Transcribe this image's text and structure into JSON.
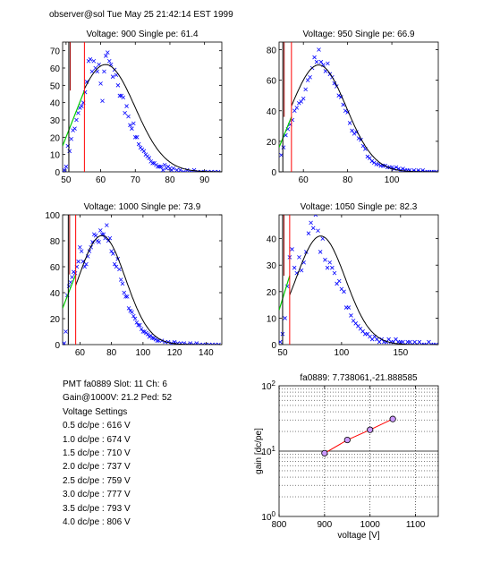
{
  "header": "observer@sol  Tue May 25 21:42:14 EST 1999",
  "colors": {
    "data_marker": "#0000ff",
    "fit_curve": "#000000",
    "low_fit": "#00cc00",
    "cut_line": "#ff0000",
    "gain_line": "#ff0000",
    "gain_point_fill": "#cc99ff"
  },
  "info": {
    "pmt_line": "PMT fa0889 Slot: 11 Ch: 6",
    "gain_line": "Gain@1000V: 21.2 Ped: 52",
    "settings_title": "Voltage Settings",
    "settings": [
      "0.5 dc/pe : 616 V",
      "1.0 dc/pe : 674 V",
      "1.5 dc/pe : 710 V",
      "2.0 dc/pe : 737 V",
      "2.5 dc/pe : 759 V",
      "3.0 dc/pe : 777 V",
      "3.5 dc/pe : 793 V",
      "4.0 dc/pe : 806 V"
    ]
  },
  "chart_data": [
    {
      "type": "scatter",
      "title": "Voltage: 900 Single pe: 61.4",
      "xlim": [
        49,
        95
      ],
      "ylim": [
        0,
        75
      ],
      "xticks": [
        50,
        60,
        70,
        80,
        90
      ],
      "yticks": [
        0,
        10,
        20,
        30,
        40,
        50,
        60,
        70
      ],
      "fit": {
        "amp": 62,
        "mean": 61.4,
        "sigma": 8.5
      },
      "low_fit": {
        "x": [
          49,
          55.3
        ],
        "y": [
          15,
          47
        ]
      },
      "cut_lines": [
        50.8,
        55.3
      ],
      "points": [
        [
          49.5,
          1
        ],
        [
          50,
          3
        ],
        [
          50.5,
          15
        ],
        [
          51,
          12
        ],
        [
          51.5,
          19
        ],
        [
          52,
          24
        ],
        [
          52.5,
          25
        ],
        [
          53,
          30
        ],
        [
          53.5,
          34
        ],
        [
          54,
          37
        ],
        [
          54.5,
          38
        ],
        [
          55,
          40
        ],
        [
          55.5,
          46
        ],
        [
          56,
          52
        ],
        [
          56.5,
          64
        ],
        [
          57,
          65
        ],
        [
          57.5,
          58
        ],
        [
          58,
          64
        ],
        [
          58.5,
          60
        ],
        [
          59,
          58
        ],
        [
          59.5,
          62
        ],
        [
          60,
          51
        ],
        [
          60.5,
          41
        ],
        [
          61,
          58
        ],
        [
          61.5,
          67
        ],
        [
          62,
          69
        ],
        [
          62.5,
          64
        ],
        [
          63,
          62
        ],
        [
          63.5,
          55
        ],
        [
          64,
          59
        ],
        [
          64.5,
          56
        ],
        [
          65,
          50
        ],
        [
          65.5,
          44
        ],
        [
          66,
          44
        ],
        [
          66.5,
          43
        ],
        [
          67,
          34
        ],
        [
          67.5,
          38
        ],
        [
          68,
          32
        ],
        [
          68.5,
          27
        ],
        [
          69,
          25
        ],
        [
          69.5,
          28
        ],
        [
          70,
          20
        ],
        [
          70.5,
          20
        ],
        [
          71,
          16
        ],
        [
          71.5,
          14
        ],
        [
          72,
          13
        ],
        [
          72.5,
          12
        ],
        [
          73,
          10
        ],
        [
          73.5,
          9
        ],
        [
          74,
          8
        ],
        [
          74.5,
          6
        ],
        [
          75,
          5
        ],
        [
          75.5,
          5
        ],
        [
          76,
          4
        ],
        [
          76.5,
          3
        ],
        [
          77,
          3
        ],
        [
          77.5,
          3
        ],
        [
          78,
          1
        ],
        [
          78.5,
          4
        ],
        [
          79,
          2
        ],
        [
          79.5,
          3
        ],
        [
          80,
          2
        ],
        [
          80.5,
          1
        ],
        [
          81,
          2
        ],
        [
          82,
          1
        ],
        [
          83,
          1
        ],
        [
          84,
          0
        ],
        [
          85,
          1
        ],
        [
          86,
          0
        ],
        [
          87,
          1
        ],
        [
          88,
          0
        ],
        [
          89,
          0
        ],
        [
          90,
          0
        ],
        [
          91,
          0
        ],
        [
          92,
          0
        ],
        [
          93,
          0
        ],
        [
          94,
          0
        ]
      ]
    },
    {
      "type": "scatter",
      "title": "Voltage: 950 Single pe: 66.9",
      "xlim": [
        49,
        121
      ],
      "ylim": [
        0,
        85
      ],
      "xticks": [
        60,
        80,
        100
      ],
      "yticks": [
        0,
        20,
        40,
        60,
        80
      ],
      "fit": {
        "amp": 70,
        "mean": 66.9,
        "sigma": 12.5
      },
      "low_fit": {
        "x": [
          49,
          54.6
        ],
        "y": [
          16,
          36
        ]
      },
      "cut_lines": [
        50.7,
        54.6
      ],
      "points": [
        [
          50,
          11
        ],
        [
          51,
          16
        ],
        [
          52,
          24
        ],
        [
          53,
          28
        ],
        [
          54,
          31
        ],
        [
          55,
          34
        ],
        [
          56,
          40
        ],
        [
          57,
          42
        ],
        [
          58,
          45
        ],
        [
          59,
          46
        ],
        [
          60,
          48
        ],
        [
          61,
          54
        ],
        [
          62,
          60
        ],
        [
          63,
          62
        ],
        [
          64,
          68
        ],
        [
          65,
          75
        ],
        [
          66,
          72
        ],
        [
          67,
          80
        ],
        [
          68,
          72
        ],
        [
          69,
          70
        ],
        [
          70,
          66
        ],
        [
          71,
          71
        ],
        [
          72,
          64
        ],
        [
          73,
          62
        ],
        [
          74,
          58
        ],
        [
          75,
          56
        ],
        [
          76,
          50
        ],
        [
          77,
          49
        ],
        [
          78,
          44
        ],
        [
          79,
          40
        ],
        [
          80,
          39
        ],
        [
          81,
          32
        ],
        [
          82,
          27
        ],
        [
          83,
          25
        ],
        [
          84,
          26
        ],
        [
          85,
          22
        ],
        [
          86,
          21
        ],
        [
          87,
          17
        ],
        [
          88,
          15
        ],
        [
          89,
          10
        ],
        [
          90,
          9
        ],
        [
          91,
          7
        ],
        [
          92,
          6
        ],
        [
          93,
          5
        ],
        [
          94,
          5
        ],
        [
          95,
          4
        ],
        [
          96,
          4
        ],
        [
          97,
          4
        ],
        [
          98,
          3
        ],
        [
          99,
          3
        ],
        [
          100,
          3
        ],
        [
          101,
          2
        ],
        [
          102,
          3
        ],
        [
          103,
          2
        ],
        [
          104,
          1
        ],
        [
          105,
          2
        ],
        [
          106,
          1
        ],
        [
          107,
          1
        ],
        [
          108,
          1
        ],
        [
          109,
          0
        ],
        [
          110,
          1
        ],
        [
          111,
          0
        ],
        [
          112,
          1
        ],
        [
          113,
          0
        ],
        [
          114,
          1
        ],
        [
          115,
          0
        ],
        [
          116,
          0
        ],
        [
          117,
          0
        ],
        [
          118,
          0
        ],
        [
          119,
          0
        ],
        [
          120,
          0
        ]
      ]
    },
    {
      "type": "scatter",
      "title": "Voltage: 1000 Single pe: 73.9",
      "xlim": [
        49,
        150
      ],
      "ylim": [
        0,
        100
      ],
      "xticks": [
        60,
        80,
        100,
        120,
        140
      ],
      "yticks": [
        0,
        20,
        40,
        60,
        80,
        100
      ],
      "fit": {
        "amp": 84,
        "mean": 73.9,
        "sigma": 15
      },
      "low_fit": {
        "x": [
          49,
          57.3
        ],
        "y": [
          28,
          54
        ]
      },
      "cut_lines": [
        52.6,
        57.3
      ],
      "points": [
        [
          50,
          1
        ],
        [
          51,
          10
        ],
        [
          52,
          38
        ],
        [
          53,
          45
        ],
        [
          54,
          48
        ],
        [
          55,
          52
        ],
        [
          56,
          56
        ],
        [
          57,
          55
        ],
        [
          58,
          60
        ],
        [
          59,
          64
        ],
        [
          60,
          75
        ],
        [
          61,
          72
        ],
        [
          62,
          64
        ],
        [
          63,
          60
        ],
        [
          64,
          62
        ],
        [
          65,
          68
        ],
        [
          66,
          72
        ],
        [
          67,
          75
        ],
        [
          68,
          79
        ],
        [
          69,
          85
        ],
        [
          70,
          84
        ],
        [
          71,
          80
        ],
        [
          72,
          79
        ],
        [
          73,
          88
        ],
        [
          74,
          85
        ],
        [
          75,
          85
        ],
        [
          76,
          82
        ],
        [
          77,
          92
        ],
        [
          78,
          80
        ],
        [
          79,
          82
        ],
        [
          80,
          72
        ],
        [
          81,
          70
        ],
        [
          82,
          62
        ],
        [
          83,
          60
        ],
        [
          84,
          66
        ],
        [
          85,
          58
        ],
        [
          86,
          50
        ],
        [
          87,
          47
        ],
        [
          88,
          40
        ],
        [
          89,
          37
        ],
        [
          90,
          37
        ],
        [
          91,
          28
        ],
        [
          92,
          26
        ],
        [
          93,
          25
        ],
        [
          94,
          22
        ],
        [
          95,
          20
        ],
        [
          96,
          17
        ],
        [
          97,
          15
        ],
        [
          98,
          15
        ],
        [
          99,
          12
        ],
        [
          100,
          10
        ],
        [
          101,
          10
        ],
        [
          102,
          9
        ],
        [
          103,
          8
        ],
        [
          104,
          6
        ],
        [
          105,
          7
        ],
        [
          106,
          5
        ],
        [
          107,
          5
        ],
        [
          108,
          4
        ],
        [
          109,
          3
        ],
        [
          110,
          3
        ],
        [
          112,
          3
        ],
        [
          114,
          2
        ],
        [
          116,
          2
        ],
        [
          118,
          1
        ],
        [
          120,
          2
        ],
        [
          122,
          1
        ],
        [
          124,
          1
        ],
        [
          126,
          1
        ],
        [
          128,
          0
        ],
        [
          130,
          1
        ],
        [
          132,
          0
        ],
        [
          134,
          1
        ],
        [
          136,
          0
        ],
        [
          138,
          0
        ],
        [
          140,
          0
        ],
        [
          142,
          0
        ],
        [
          144,
          0
        ],
        [
          146,
          0
        ],
        [
          148,
          0
        ]
      ]
    },
    {
      "type": "scatter",
      "title": "Voltage: 1050 Single pe: 82.3",
      "xlim": [
        47,
        182
      ],
      "ylim": [
        0,
        49
      ],
      "xticks": [
        50,
        100,
        150
      ],
      "yticks": [
        0,
        10,
        20,
        30,
        40
      ],
      "fit": {
        "amp": 41,
        "mean": 82.3,
        "sigma": 21
      },
      "low_fit": {
        "x": [
          47,
          56
        ],
        "y": [
          13,
          26
        ]
      },
      "cut_lines": [
        50,
        56
      ],
      "points": [
        [
          48,
          1
        ],
        [
          50,
          4
        ],
        [
          52,
          10
        ],
        [
          54,
          22
        ],
        [
          56,
          33
        ],
        [
          58,
          36
        ],
        [
          60,
          29
        ],
        [
          62,
          27
        ],
        [
          64,
          33
        ],
        [
          66,
          28
        ],
        [
          68,
          31
        ],
        [
          70,
          35
        ],
        [
          72,
          42
        ],
        [
          74,
          46
        ],
        [
          76,
          44
        ],
        [
          78,
          49
        ],
        [
          80,
          43
        ],
        [
          82,
          35
        ],
        [
          84,
          40
        ],
        [
          86,
          32
        ],
        [
          88,
          29
        ],
        [
          90,
          31
        ],
        [
          92,
          29
        ],
        [
          94,
          27
        ],
        [
          96,
          23
        ],
        [
          98,
          24
        ],
        [
          100,
          21
        ],
        [
          102,
          20
        ],
        [
          104,
          14
        ],
        [
          106,
          14
        ],
        [
          108,
          11
        ],
        [
          110,
          9
        ],
        [
          112,
          8
        ],
        [
          114,
          7
        ],
        [
          116,
          6
        ],
        [
          118,
          5
        ],
        [
          120,
          4
        ],
        [
          122,
          4
        ],
        [
          124,
          3
        ],
        [
          126,
          2
        ],
        [
          128,
          3
        ],
        [
          130,
          2
        ],
        [
          132,
          1
        ],
        [
          134,
          2
        ],
        [
          136,
          1
        ],
        [
          138,
          1
        ],
        [
          140,
          2
        ],
        [
          142,
          1
        ],
        [
          144,
          1
        ],
        [
          146,
          2
        ],
        [
          148,
          1
        ],
        [
          150,
          1
        ],
        [
          152,
          1
        ],
        [
          154,
          0
        ],
        [
          156,
          1
        ],
        [
          158,
          1
        ],
        [
          160,
          0
        ],
        [
          162,
          1
        ],
        [
          164,
          0
        ],
        [
          166,
          1
        ],
        [
          168,
          0
        ],
        [
          170,
          0
        ],
        [
          172,
          0
        ],
        [
          174,
          1
        ],
        [
          176,
          0
        ],
        [
          178,
          0
        ],
        [
          180,
          0
        ]
      ]
    },
    {
      "type": "line",
      "title": "fa0889: 7.738061,-21.888585",
      "xlabel": "voltage [V]",
      "ylabel": "gain [dc/pe]",
      "xlim": [
        800,
        1150
      ],
      "ylim": [
        1,
        100
      ],
      "yscale": "log",
      "xticks": [
        800,
        900,
        1000,
        1100
      ],
      "ytick_labels": [
        {
          "base": "10",
          "exp": "0"
        },
        {
          "base": "10",
          "exp": "1"
        },
        {
          "base": "10",
          "exp": "2"
        }
      ],
      "grid": true,
      "x": [
        900,
        950,
        1000,
        1050
      ],
      "y": [
        9.3,
        14.8,
        21.2,
        31.0
      ]
    }
  ]
}
